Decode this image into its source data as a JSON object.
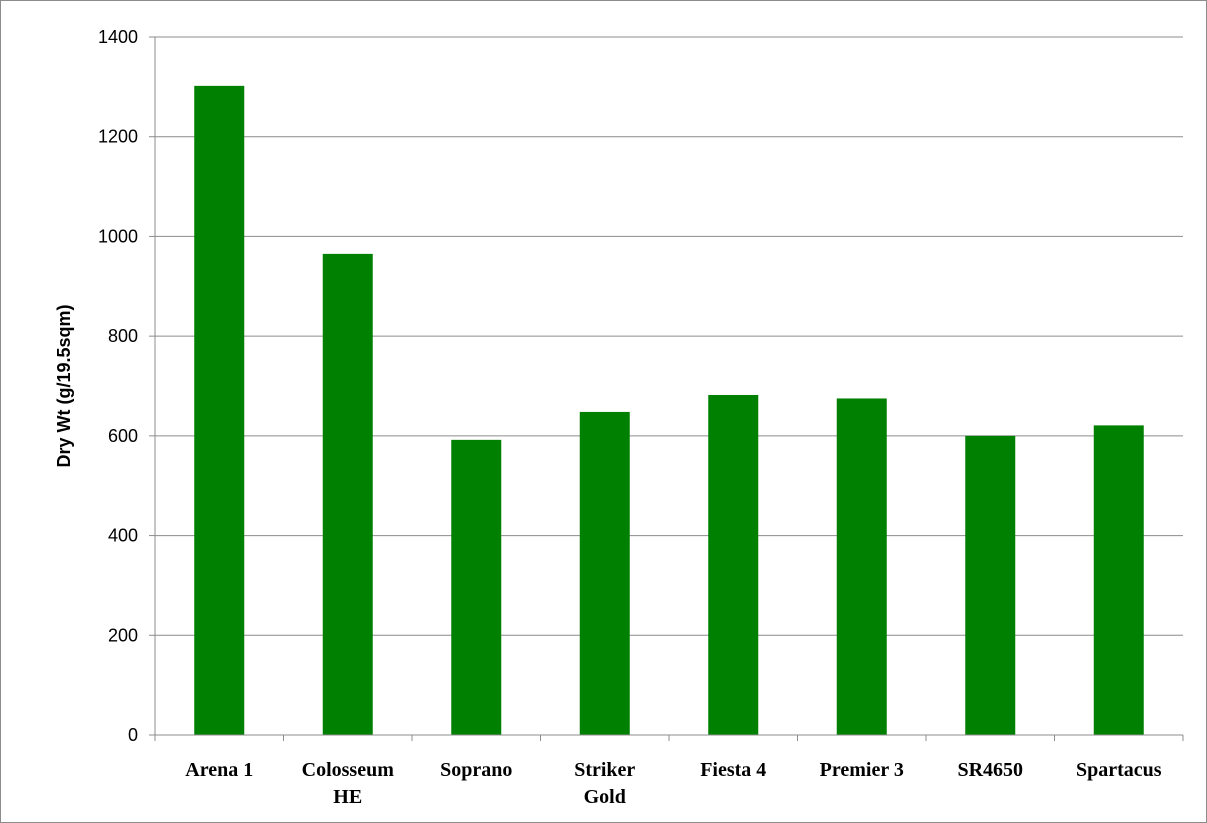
{
  "chart_data": {
    "type": "bar",
    "title": "",
    "xlabel": "",
    "ylabel": "Dry Wt (g/19.5sqm)",
    "categories": [
      "Arena 1",
      "Colosseum HE",
      "Soprano",
      "Striker Gold",
      "Fiesta 4",
      "Premier 3",
      "SR4650",
      "Spartacus"
    ],
    "category_lines": [
      [
        "Arena 1"
      ],
      [
        "Colosseum",
        "HE"
      ],
      [
        "Soprano"
      ],
      [
        "Striker",
        "Gold"
      ],
      [
        "Fiesta 4"
      ],
      [
        "Premier 3"
      ],
      [
        "SR4650"
      ],
      [
        "Spartacus"
      ]
    ],
    "values": [
      1302,
      965,
      592,
      648,
      682,
      675,
      600,
      621
    ],
    "ylim": [
      0,
      1400
    ],
    "yticks": [
      0,
      200,
      400,
      600,
      800,
      1000,
      1200,
      1400
    ],
    "grid": true,
    "legend": "none",
    "bar_color": "#008000",
    "grid_color": "#8c8c8c"
  }
}
